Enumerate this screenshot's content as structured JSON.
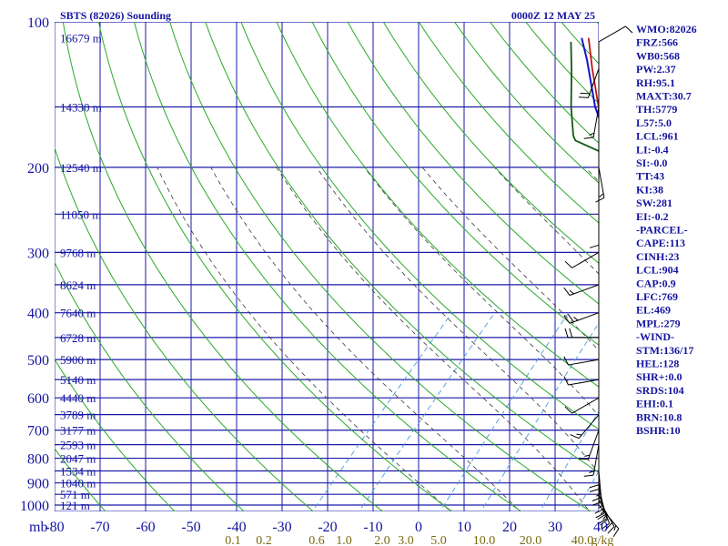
{
  "header": {
    "title": "SBTS (82026) Sounding",
    "time": "0000Z 12 MAY 25"
  },
  "colors": {
    "grid": "#1a1aa8",
    "dry_adiabat": "#2aa82a",
    "moist_adiabat": "#3a3a3a",
    "mixing_ratio": "#4a9ae0",
    "temperature": "#c01414",
    "dewpoint": "#145a14",
    "parcel": "#1414c8",
    "wind": "#000000",
    "text": "#1414a0",
    "mixing_label": "#7a6a10"
  },
  "indices": [
    "WMO:82026",
    "FRZ:566",
    "WB0:568",
    "PW:2.37",
    "RH:95.1",
    "MAXT:30.7",
    "TH:5779",
    "L57:5.0",
    "LCL:961",
    "LI:-0.4",
    "SI:-0.0",
    "TT:43",
    "KI:38",
    "SW:281",
    "EI:-0.2",
    "-PARCEL-",
    "CAPE:113",
    "CINH:23",
    "LCL:904",
    "CAP:0.9",
    "LFC:769",
    "EL:469",
    "MPL:279",
    "-WIND-",
    "STM:136/17",
    "HEL:128",
    "SHR+:0.0",
    "SRDS:104",
    "EHI:0.1",
    "BRN:10.8",
    "BSHR:10"
  ],
  "chart_data": {
    "type": "skew-t",
    "y_axis": {
      "unit": "mb",
      "scale": "log",
      "ticks": [
        "100",
        "200",
        "300",
        "400",
        "500",
        "600",
        "700",
        "800",
        "900",
        "1000"
      ]
    },
    "x_axis": {
      "unit_label": "mb",
      "ticks": [
        "-80",
        "-70",
        "-60",
        "-50",
        "-40",
        "-30",
        "-20",
        "-10",
        "0",
        "10",
        "20",
        "30",
        "40"
      ]
    },
    "mixing_ratio_labels": [
      "0.1",
      "0.2",
      "0.6",
      "1.0",
      "2.0",
      "3.0",
      "5.0",
      "10.0",
      "20.0",
      "40.0",
      "g/kg"
    ],
    "height_labels": [
      {
        "p": 108,
        "label": "16679 m"
      },
      {
        "p": 150,
        "label": "14330 m"
      },
      {
        "p": 200,
        "label": "12540 m"
      },
      {
        "p": 250,
        "label": "11050 m"
      },
      {
        "p": 300,
        "label": "9768 m"
      },
      {
        "p": 350,
        "label": "8624 m"
      },
      {
        "p": 400,
        "label": "7640 m"
      },
      {
        "p": 450,
        "label": "6728 m"
      },
      {
        "p": 500,
        "label": "5900 m"
      },
      {
        "p": 550,
        "label": "5140 m"
      },
      {
        "p": 600,
        "label": "4440 m"
      },
      {
        "p": 650,
        "label": "3789 m"
      },
      {
        "p": 700,
        "label": "3177 m"
      },
      {
        "p": 750,
        "label": "2593 m"
      },
      {
        "p": 800,
        "label": "2047 m"
      },
      {
        "p": 850,
        "label": "1534 m"
      },
      {
        "p": 900,
        "label": "1040 m"
      },
      {
        "p": 950,
        "label": "571 m"
      },
      {
        "p": 1000,
        "label": "121 m"
      }
    ],
    "series": [
      {
        "key": "temperature",
        "points": [
          [
            1007,
            25.4
          ],
          [
            1000,
            25.0
          ],
          [
            975,
            23.6
          ],
          [
            950,
            21.5
          ],
          [
            925,
            20.0
          ],
          [
            900,
            19.0
          ],
          [
            850,
            16.6
          ],
          [
            800,
            14.6
          ],
          [
            750,
            12.0
          ],
          [
            700,
            9.0
          ],
          [
            650,
            5.0
          ],
          [
            600,
            1.6
          ],
          [
            550,
            -1.4
          ],
          [
            500,
            -5.0
          ],
          [
            450,
            -9.7
          ],
          [
            400,
            -14.6
          ],
          [
            350,
            -20.4
          ],
          [
            300,
            -27.2
          ],
          [
            250,
            -35.6
          ],
          [
            200,
            -44.5
          ],
          [
            175,
            -52.0
          ],
          [
            150,
            -58.5
          ],
          [
            125,
            -65.0
          ],
          [
            108,
            -70.0
          ]
        ]
      },
      {
        "key": "dewpoint",
        "points": [
          [
            1007,
            24.0
          ],
          [
            1000,
            23.6
          ],
          [
            975,
            22.0
          ],
          [
            950,
            20.6
          ],
          [
            925,
            19.5
          ],
          [
            900,
            18.5
          ],
          [
            850,
            15.6
          ],
          [
            800,
            13.0
          ],
          [
            750,
            10.5
          ],
          [
            700,
            8.4
          ],
          [
            650,
            4.5
          ],
          [
            600,
            0.2
          ],
          [
            550,
            -3.4
          ],
          [
            500,
            -6.6
          ],
          [
            450,
            -10.8
          ],
          [
            400,
            -15.6
          ],
          [
            350,
            -22.0
          ],
          [
            300,
            -28.5
          ],
          [
            250,
            -38.0
          ],
          [
            220,
            -44.5
          ],
          [
            203,
            -46.3
          ],
          [
            200,
            -48.5
          ],
          [
            190,
            -49.5
          ],
          [
            176,
            -57.0
          ],
          [
            172,
            -58.0
          ],
          [
            150,
            -62.5
          ],
          [
            125,
            -68.0
          ],
          [
            110,
            -72.0
          ]
        ]
      },
      {
        "key": "parcel",
        "points": [
          [
            1000,
            24.4
          ],
          [
            975,
            22.8
          ],
          [
            950,
            21.0
          ],
          [
            925,
            19.5
          ],
          [
            900,
            18.3
          ],
          [
            850,
            16.0
          ],
          [
            800,
            13.8
          ],
          [
            750,
            11.6
          ],
          [
            700,
            8.8
          ],
          [
            650,
            5.9
          ],
          [
            600,
            2.6
          ],
          [
            550,
            -1.2
          ],
          [
            500,
            -5.4
          ],
          [
            450,
            -10.0
          ],
          [
            400,
            -15.4
          ],
          [
            350,
            -21.6
          ],
          [
            300,
            -28.8
          ],
          [
            250,
            -37.5
          ],
          [
            200,
            -47.0
          ],
          [
            150,
            -59.0
          ],
          [
            120,
            -67.0
          ],
          [
            108,
            -71.0
          ]
        ]
      }
    ],
    "wind_barbs": [
      {
        "p": 1000,
        "dir": 140,
        "spd": 15
      },
      {
        "p": 975,
        "dir": 150,
        "spd": 20
      },
      {
        "p": 950,
        "dir": 160,
        "spd": 25
      },
      {
        "p": 925,
        "dir": 165,
        "spd": 25
      },
      {
        "p": 900,
        "dir": 170,
        "spd": 25
      },
      {
        "p": 850,
        "dir": 175,
        "spd": 25
      },
      {
        "p": 800,
        "dir": 180,
        "spd": 20
      },
      {
        "p": 750,
        "dir": 190,
        "spd": 15
      },
      {
        "p": 700,
        "dir": 200,
        "spd": 15
      },
      {
        "p": 650,
        "dir": 220,
        "spd": 15
      },
      {
        "p": 600,
        "dir": 240,
        "spd": 10
      },
      {
        "p": 550,
        "dir": 260,
        "spd": 10
      },
      {
        "p": 500,
        "dir": 260,
        "spd": 10
      },
      {
        "p": 450,
        "dir": 270,
        "spd": 20
      },
      {
        "p": 400,
        "dir": 250,
        "spd": 25
      },
      {
        "p": 350,
        "dir": 250,
        "spd": 15
      },
      {
        "p": 300,
        "dir": 240,
        "spd": 10
      },
      {
        "p": 250,
        "dir": 180,
        "spd": 10
      },
      {
        "p": 200,
        "dir": 170,
        "spd": 15
      },
      {
        "p": 150,
        "dir": 190,
        "spd": 15
      },
      {
        "p": 125,
        "dir": 200,
        "spd": 20
      },
      {
        "p": 110,
        "dir": 60,
        "spd": 10
      }
    ]
  }
}
